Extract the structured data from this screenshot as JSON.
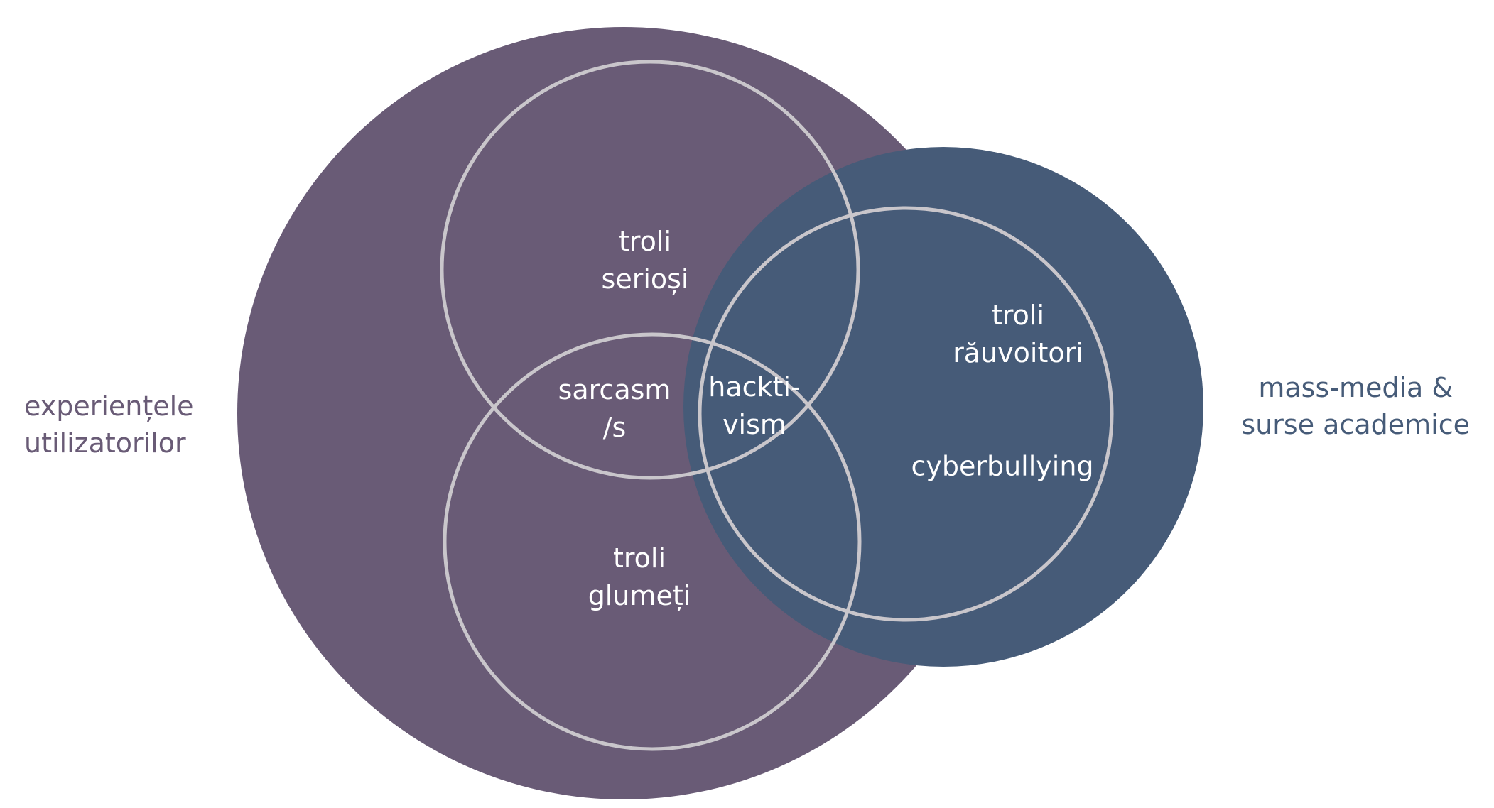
{
  "colors": {
    "background": "#ffffff",
    "large_circle_left": "#695b76",
    "large_circle_right": "#465b78",
    "outline_circles": "#c9c6cb",
    "label_left": "#695b76",
    "label_right": "#465b78",
    "inner_text": "#ffffff"
  },
  "labels": {
    "left": [
      "experiențele",
      "utilizatorilor"
    ],
    "right": [
      "mass-media &",
      "surse academice"
    ]
  },
  "regions": {
    "troli_seriosi": [
      "troli",
      "serioși"
    ],
    "sarcasm": [
      "sarcasm",
      "/s"
    ],
    "hacktivism": [
      "hackti-",
      "vism"
    ],
    "troli_glumeti": [
      "troli",
      "glumeți"
    ],
    "troli_rauvoitori": [
      "troli",
      "răuvoitori"
    ],
    "cyberbullying": [
      "cyberbullying"
    ]
  }
}
